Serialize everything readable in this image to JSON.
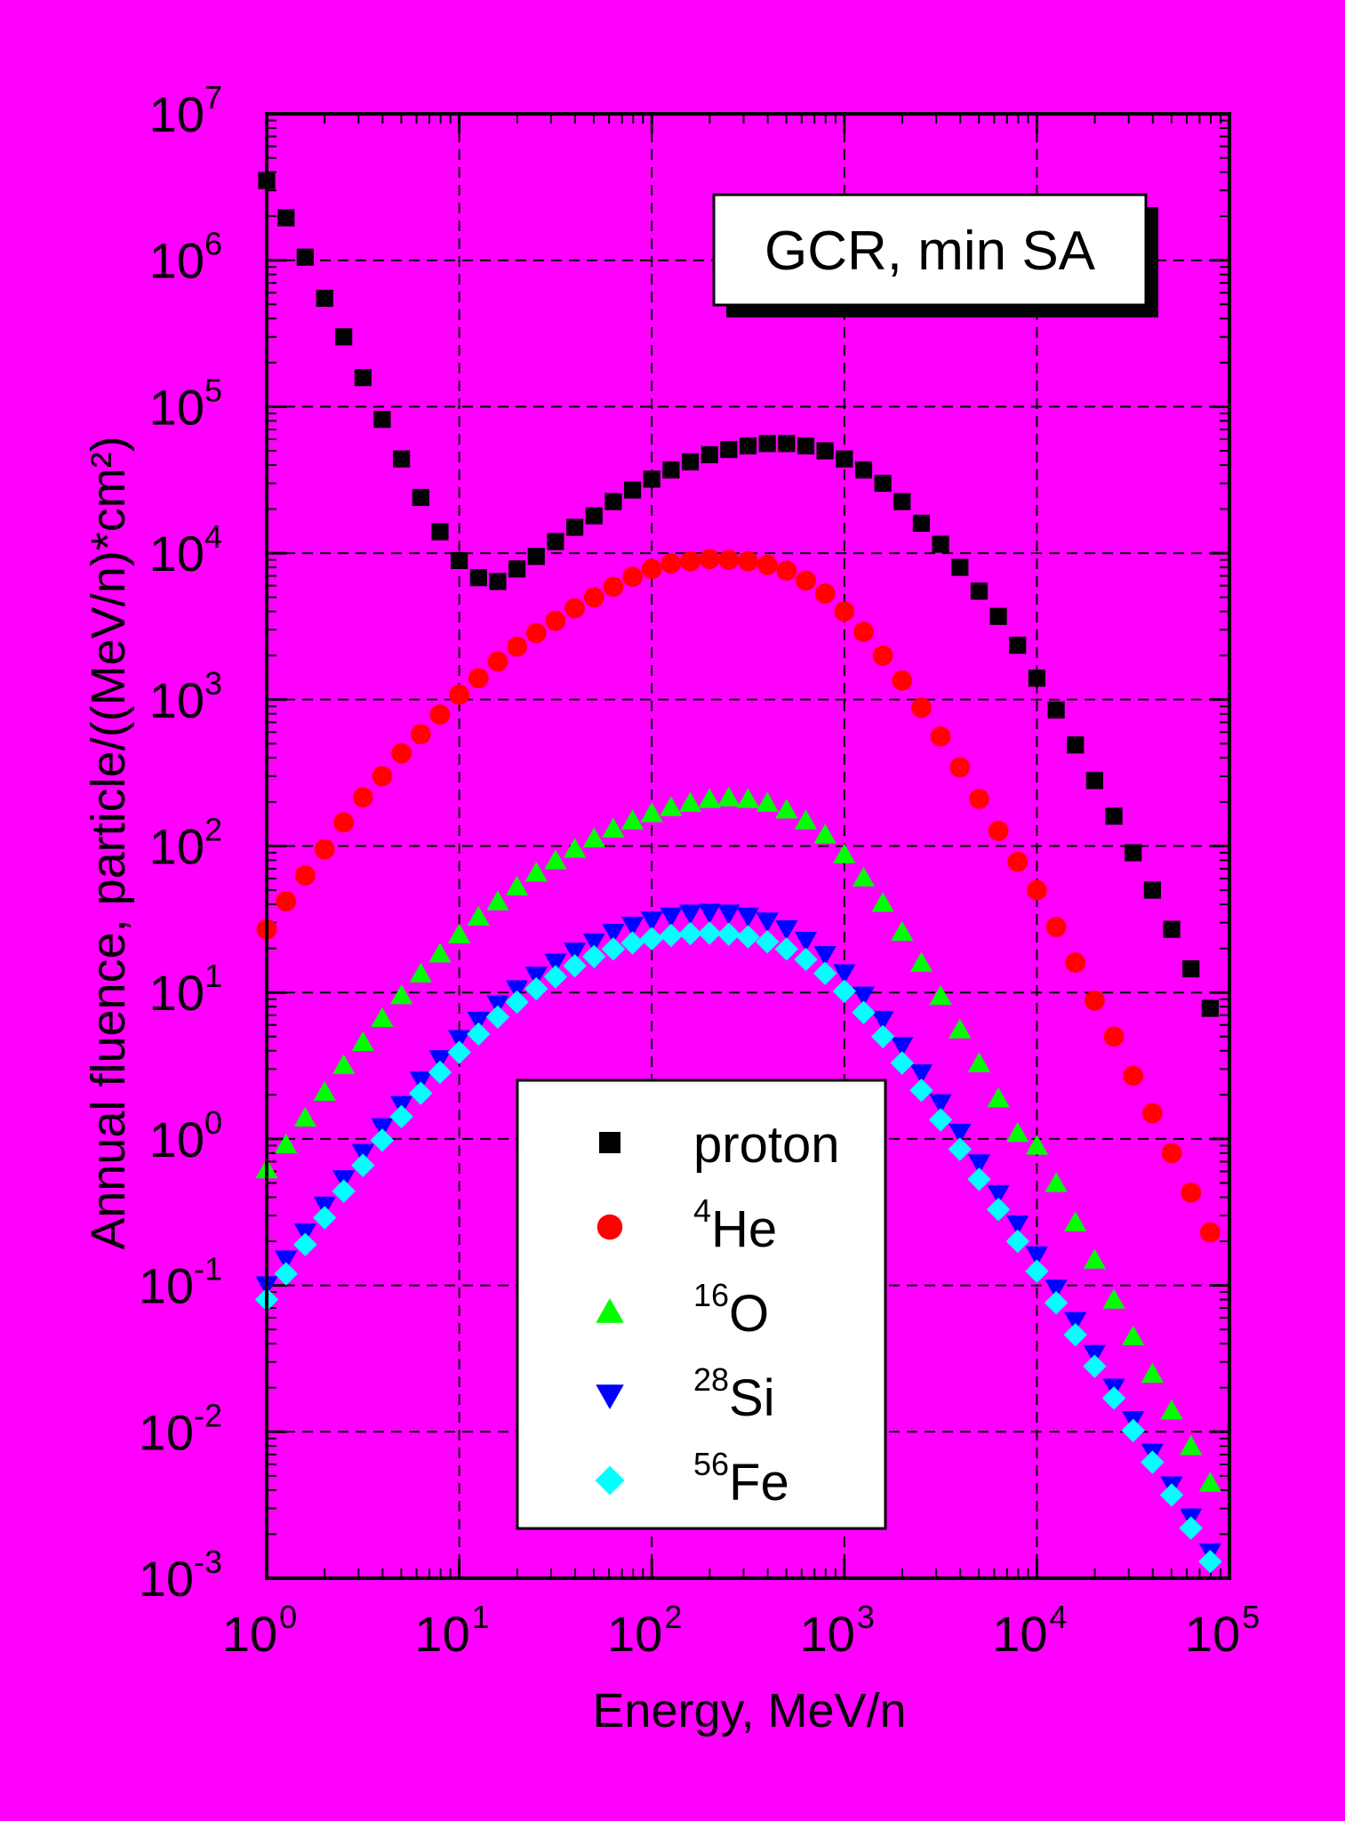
{
  "colors": {
    "background": "#ff00ff",
    "proton": "#000000",
    "he4": "#ff0000",
    "o16": "#00ff00",
    "si28": "#0000ff",
    "fe56": "#00ffff"
  },
  "chart_data": {
    "type": "scatter",
    "title": "",
    "annotation": "GCR, min SA",
    "xlabel": "Energy, MeV/n",
    "ylabel": "Annual fluence, particle/((MeV/n)*cm²)",
    "x_scale": "log",
    "y_scale": "log",
    "xlim": [
      1,
      100000
    ],
    "ylim": [
      0.001,
      10000000
    ],
    "grid": true,
    "legend_position": "bottom-center",
    "x_ticks": [
      {
        "base": "10",
        "exp": "0",
        "value": 1
      },
      {
        "base": "10",
        "exp": "1",
        "value": 10
      },
      {
        "base": "10",
        "exp": "2",
        "value": 100
      },
      {
        "base": "10",
        "exp": "3",
        "value": 1000
      },
      {
        "base": "10",
        "exp": "4",
        "value": 10000
      },
      {
        "base": "10",
        "exp": "5",
        "value": 100000
      }
    ],
    "y_ticks": [
      {
        "base": "10",
        "exp": "-3",
        "value": 0.001
      },
      {
        "base": "10",
        "exp": "-2",
        "value": 0.01
      },
      {
        "base": "10",
        "exp": "-1",
        "value": 0.1
      },
      {
        "base": "10",
        "exp": "0",
        "value": 1
      },
      {
        "base": "10",
        "exp": "1",
        "value": 10
      },
      {
        "base": "10",
        "exp": "2",
        "value": 100
      },
      {
        "base": "10",
        "exp": "3",
        "value": 1000
      },
      {
        "base": "10",
        "exp": "4",
        "value": 10000
      },
      {
        "base": "10",
        "exp": "5",
        "value": 100000
      },
      {
        "base": "10",
        "exp": "6",
        "value": 1000000
      },
      {
        "base": "10",
        "exp": "7",
        "value": 10000000
      }
    ],
    "x": [
      1,
      1.26,
      1.585,
      2,
      2.512,
      3.162,
      3.981,
      5.012,
      6.31,
      7.943,
      10,
      12.59,
      15.85,
      19.95,
      25.12,
      31.62,
      39.81,
      50.12,
      63.1,
      79.43,
      100,
      125.9,
      158.5,
      199.5,
      251.2,
      316.2,
      398.1,
      501.2,
      631,
      794.3,
      1000,
      1259,
      1585,
      1995,
      2512,
      3162,
      3981,
      5012,
      6310,
      7943,
      10000,
      12590,
      15850,
      19950,
      25120,
      31620,
      39810,
      50120,
      63100,
      79430
    ],
    "series": [
      {
        "name": "proton",
        "sup": "",
        "sym": "H",
        "marker": "square",
        "color": "#000000",
        "values": [
          3500000,
          1950000,
          1050000,
          550000,
          300000,
          158000,
          82000,
          44000,
          24000,
          14000,
          8900,
          6800,
          6400,
          7800,
          9500,
          12000,
          15000,
          18000,
          22500,
          27000,
          32000,
          37000,
          42000,
          47000,
          51000,
          54000,
          56000,
          56000,
          54000,
          50000,
          44000,
          37000,
          30000,
          22500,
          16000,
          11500,
          8000,
          5500,
          3700,
          2350,
          1400,
          850,
          490,
          280,
          160,
          90,
          50,
          27,
          14.5,
          7.8
        ]
      },
      {
        "name": "4He",
        "sup": "4",
        "sym": "He",
        "marker": "circle",
        "color": "#ff0000",
        "values": [
          27,
          42,
          63,
          95,
          145,
          215,
          300,
          430,
          580,
          790,
          1080,
          1400,
          1820,
          2300,
          2850,
          3450,
          4200,
          5000,
          5900,
          6900,
          7800,
          8500,
          8800,
          9100,
          9000,
          8800,
          8300,
          7600,
          6500,
          5300,
          4000,
          2900,
          2000,
          1350,
          880,
          560,
          345,
          210,
          127,
          78,
          50,
          28,
          16,
          8.8,
          5,
          2.7,
          1.5,
          0.8,
          0.43,
          0.23
        ]
      },
      {
        "name": "16O",
        "sup": "16",
        "sym": "O",
        "marker": "triangle-up",
        "color": "#00ff00",
        "values": [
          0.62,
          0.92,
          1.4,
          2.1,
          3.2,
          4.6,
          6.7,
          9.6,
          13.5,
          18.5,
          25,
          33,
          42,
          53,
          66,
          80,
          96,
          113,
          132,
          150,
          168,
          185,
          198,
          210,
          215,
          210,
          198,
          178,
          150,
          120,
          88,
          61,
          41,
          26,
          16,
          9.5,
          5.6,
          3.3,
          1.9,
          1.1,
          0.9,
          0.5,
          0.27,
          0.15,
          0.08,
          0.045,
          0.025,
          0.014,
          0.008,
          0.0045
        ]
      },
      {
        "name": "28Si",
        "sup": "28",
        "sym": "Si",
        "marker": "triangle-down",
        "color": "#0000ff",
        "values": [
          0.1,
          0.15,
          0.23,
          0.35,
          0.53,
          0.8,
          1.2,
          1.7,
          2.5,
          3.5,
          4.8,
          6.4,
          8.3,
          10.5,
          13,
          16,
          19,
          22,
          25.5,
          28.5,
          31,
          33,
          34.5,
          35,
          34.5,
          33,
          30.5,
          27,
          22.5,
          18,
          13.5,
          9.5,
          6.5,
          4.3,
          2.8,
          1.75,
          1.1,
          0.68,
          0.42,
          0.26,
          0.16,
          0.095,
          0.057,
          0.034,
          0.02,
          0.012,
          0.0072,
          0.0043,
          0.0026,
          0.0015
        ]
      },
      {
        "name": "56Fe",
        "sup": "56",
        "sym": "Fe",
        "marker": "diamond",
        "color": "#00ffff",
        "values": [
          0.08,
          0.12,
          0.19,
          0.29,
          0.44,
          0.66,
          0.98,
          1.42,
          2.05,
          2.85,
          3.9,
          5.2,
          6.8,
          8.6,
          10.6,
          12.8,
          15.2,
          17.6,
          19.8,
          21.8,
          23.3,
          24.5,
          25.2,
          25.4,
          25,
          24,
          22.2,
          19.8,
          16.8,
          13.5,
          10.2,
          7.3,
          5,
          3.3,
          2.15,
          1.35,
          0.85,
          0.53,
          0.33,
          0.2,
          0.125,
          0.076,
          0.046,
          0.028,
          0.017,
          0.0102,
          0.0062,
          0.0037,
          0.0022,
          0.0013
        ]
      }
    ]
  }
}
